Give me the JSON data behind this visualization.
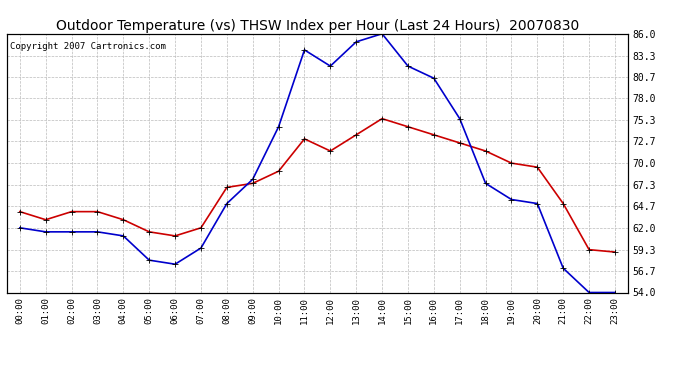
{
  "title": "Outdoor Temperature (vs) THSW Index per Hour (Last 24 Hours)  20070830",
  "copyright": "Copyright 2007 Cartronics.com",
  "x_labels": [
    "00:00",
    "01:00",
    "02:00",
    "03:00",
    "04:00",
    "05:00",
    "06:00",
    "07:00",
    "08:00",
    "09:00",
    "10:00",
    "11:00",
    "12:00",
    "13:00",
    "14:00",
    "15:00",
    "16:00",
    "17:00",
    "18:00",
    "19:00",
    "20:00",
    "21:00",
    "22:00",
    "23:00"
  ],
  "temp_data": [
    64.0,
    63.0,
    64.0,
    64.0,
    63.0,
    61.5,
    61.0,
    62.0,
    67.0,
    67.5,
    69.0,
    73.0,
    71.5,
    73.5,
    75.5,
    74.5,
    73.5,
    72.5,
    71.5,
    70.0,
    69.5,
    65.0,
    59.3,
    59.0
  ],
  "thsw_data": [
    62.0,
    61.5,
    61.5,
    61.5,
    61.0,
    58.0,
    57.5,
    59.5,
    65.0,
    68.0,
    74.5,
    84.0,
    82.0,
    85.0,
    86.0,
    82.0,
    80.5,
    75.5,
    67.5,
    65.5,
    65.0,
    57.0,
    54.0,
    54.0
  ],
  "temp_color": "#cc0000",
  "thsw_color": "#0000cc",
  "background_color": "#ffffff",
  "plot_bg_color": "#ffffff",
  "grid_color": "#bbbbbb",
  "ylim": [
    54.0,
    86.0
  ],
  "yticks": [
    54.0,
    56.7,
    59.3,
    62.0,
    64.7,
    67.3,
    70.0,
    72.7,
    75.3,
    78.0,
    80.7,
    83.3,
    86.0
  ],
  "title_fontsize": 10,
  "copyright_fontsize": 6.5,
  "marker": "+",
  "marker_size": 5,
  "line_width": 1.2
}
